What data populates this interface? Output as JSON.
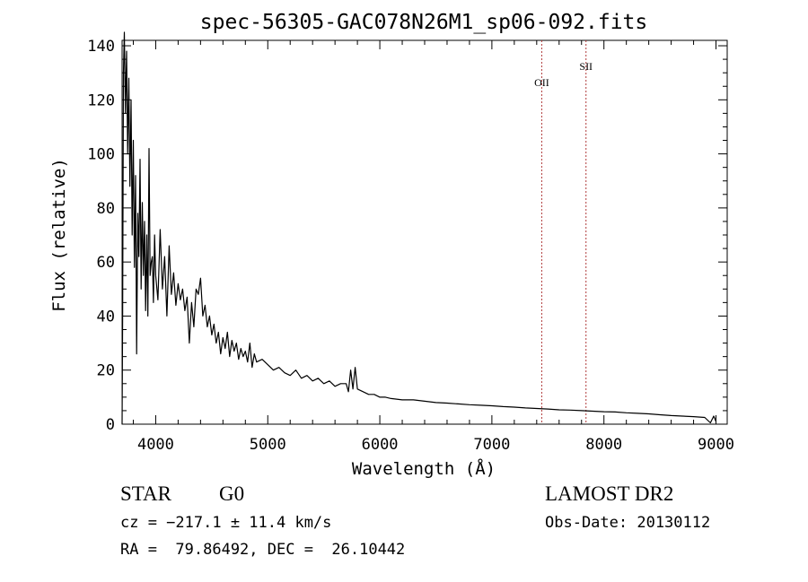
{
  "title": "spec-56305-GAC078N26M1_sp06-092.fits",
  "chart_data": {
    "type": "line",
    "xlabel": "Wavelength (Å)",
    "ylabel": "Flux (relative)",
    "xlim": [
      3700,
      9100
    ],
    "ylim": [
      0,
      142
    ],
    "x_ticks": [
      "4000",
      "5000",
      "6000",
      "7000",
      "8000",
      "9000"
    ],
    "y_ticks": [
      "0",
      "20",
      "40",
      "60",
      "80",
      "100",
      "120",
      "140"
    ],
    "grid": false,
    "series": [
      {
        "color": "#000000",
        "points": [
          [
            3700,
            0
          ],
          [
            3705,
            40
          ],
          [
            3712,
            130
          ],
          [
            3720,
            145
          ],
          [
            3730,
            115
          ],
          [
            3740,
            138
          ],
          [
            3750,
            100
          ],
          [
            3760,
            128
          ],
          [
            3770,
            88
          ],
          [
            3780,
            120
          ],
          [
            3790,
            70
          ],
          [
            3800,
            105
          ],
          [
            3810,
            58
          ],
          [
            3820,
            92
          ],
          [
            3830,
            26
          ],
          [
            3840,
            78
          ],
          [
            3850,
            62
          ],
          [
            3860,
            98
          ],
          [
            3870,
            50
          ],
          [
            3880,
            82
          ],
          [
            3890,
            55
          ],
          [
            3900,
            75
          ],
          [
            3910,
            42
          ],
          [
            3920,
            70
          ],
          [
            3930,
            40
          ],
          [
            3940,
            102
          ],
          [
            3950,
            55
          ],
          [
            3960,
            60
          ],
          [
            3970,
            62
          ],
          [
            3980,
            45
          ],
          [
            3990,
            70
          ],
          [
            4000,
            55
          ],
          [
            4020,
            46
          ],
          [
            4040,
            72
          ],
          [
            4060,
            50
          ],
          [
            4080,
            62
          ],
          [
            4100,
            40
          ],
          [
            4120,
            66
          ],
          [
            4140,
            48
          ],
          [
            4160,
            56
          ],
          [
            4180,
            44
          ],
          [
            4200,
            52
          ],
          [
            4220,
            46
          ],
          [
            4240,
            50
          ],
          [
            4260,
            42
          ],
          [
            4280,
            47
          ],
          [
            4300,
            30
          ],
          [
            4320,
            45
          ],
          [
            4340,
            36
          ],
          [
            4360,
            50
          ],
          [
            4380,
            48
          ],
          [
            4400,
            54
          ],
          [
            4420,
            40
          ],
          [
            4440,
            44
          ],
          [
            4460,
            36
          ],
          [
            4480,
            40
          ],
          [
            4500,
            33
          ],
          [
            4520,
            37
          ],
          [
            4540,
            30
          ],
          [
            4560,
            34
          ],
          [
            4580,
            26
          ],
          [
            4600,
            32
          ],
          [
            4620,
            28
          ],
          [
            4640,
            34
          ],
          [
            4660,
            25
          ],
          [
            4680,
            31
          ],
          [
            4700,
            27
          ],
          [
            4720,
            30
          ],
          [
            4740,
            24
          ],
          [
            4760,
            28
          ],
          [
            4780,
            25
          ],
          [
            4800,
            27
          ],
          [
            4820,
            23
          ],
          [
            4840,
            30
          ],
          [
            4860,
            21
          ],
          [
            4880,
            26
          ],
          [
            4900,
            23
          ],
          [
            4950,
            24
          ],
          [
            5000,
            22
          ],
          [
            5050,
            20
          ],
          [
            5100,
            21
          ],
          [
            5150,
            19
          ],
          [
            5200,
            18
          ],
          [
            5250,
            20
          ],
          [
            5300,
            17
          ],
          [
            5350,
            18
          ],
          [
            5400,
            16
          ],
          [
            5450,
            17
          ],
          [
            5500,
            15
          ],
          [
            5550,
            16
          ],
          [
            5600,
            14
          ],
          [
            5650,
            15
          ],
          [
            5700,
            15
          ],
          [
            5720,
            12
          ],
          [
            5740,
            20
          ],
          [
            5760,
            13
          ],
          [
            5780,
            21
          ],
          [
            5800,
            13
          ],
          [
            5850,
            12
          ],
          [
            5900,
            11
          ],
          [
            5950,
            11
          ],
          [
            6000,
            10
          ],
          [
            6050,
            10
          ],
          [
            6100,
            9.5
          ],
          [
            6200,
            9
          ],
          [
            6300,
            9
          ],
          [
            6400,
            8.5
          ],
          [
            6500,
            8
          ],
          [
            6600,
            7.8
          ],
          [
            6700,
            7.5
          ],
          [
            6800,
            7.2
          ],
          [
            6900,
            7
          ],
          [
            7000,
            6.8
          ],
          [
            7100,
            6.5
          ],
          [
            7200,
            6.3
          ],
          [
            7300,
            6
          ],
          [
            7400,
            5.8
          ],
          [
            7500,
            5.6
          ],
          [
            7600,
            5.3
          ],
          [
            7700,
            5.2
          ],
          [
            7800,
            5
          ],
          [
            7900,
            4.8
          ],
          [
            8000,
            4.6
          ],
          [
            8100,
            4.5
          ],
          [
            8200,
            4.2
          ],
          [
            8300,
            4
          ],
          [
            8400,
            3.8
          ],
          [
            8500,
            3.5
          ],
          [
            8600,
            3.2
          ],
          [
            8700,
            3
          ],
          [
            8800,
            2.8
          ],
          [
            8900,
            2.5
          ],
          [
            8950,
            0.5
          ],
          [
            8980,
            3
          ],
          [
            9000,
            1
          ]
        ]
      }
    ],
    "lines": [
      {
        "x": 7445,
        "label": "OII",
        "color": "#b03a3a"
      },
      {
        "x": 7840,
        "label": "SII",
        "color": "#b03a3a"
      }
    ]
  },
  "info": {
    "object_class": "STAR",
    "subclass": "G0",
    "cz": "cz = −217.1 ± 11.4 km/s",
    "radec": "RA =  79.86492, DEC =  26.10442",
    "survey": "LAMOST DR2",
    "obs_date": "Obs-Date: 20130112"
  }
}
